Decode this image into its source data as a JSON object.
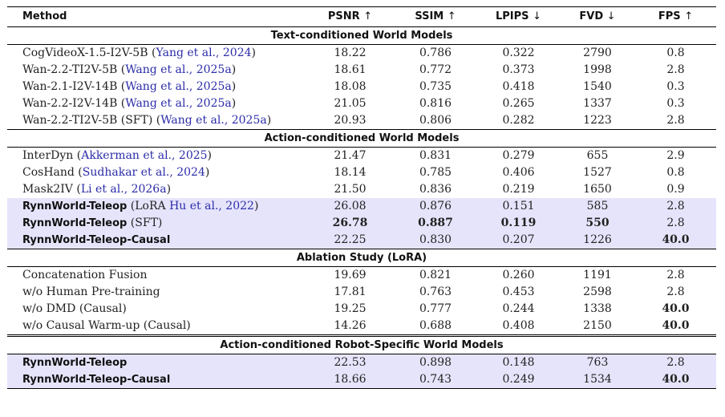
{
  "headers": {
    "method": "Method",
    "psnr": "PSNR",
    "ssim": "SSIM",
    "lpips": "LPIPS",
    "fvd": "FVD",
    "fps": "FPS",
    "up": "↑",
    "down": "↓"
  },
  "sections": [
    {
      "title": "Text-conditioned World Models",
      "rows": [
        {
          "name": "CogVideoX-1.5-I2V-5B",
          "cite": "Yang et al., 2024",
          "psnr": "18.22",
          "ssim": "0.786",
          "lpips": "0.322",
          "fvd": "2790",
          "fps": "0.8"
        },
        {
          "name": "Wan-2.2-TI2V-5B",
          "cite": "Wang et al., 2025a",
          "psnr": "18.61",
          "ssim": "0.772",
          "lpips": "0.373",
          "fvd": "1998",
          "fps": "2.8"
        },
        {
          "name": "Wan-2.1-I2V-14B",
          "cite": "Wang et al., 2025a",
          "psnr": "18.08",
          "ssim": "0.735",
          "lpips": "0.418",
          "fvd": "1540",
          "fps": "0.3"
        },
        {
          "name": "Wan-2.2-I2V-14B",
          "cite": "Wang et al., 2025a",
          "psnr": "21.05",
          "ssim": "0.816",
          "lpips": "0.265",
          "fvd": "1337",
          "fps": "0.3"
        },
        {
          "name": "Wan-2.2-TI2V-5B (SFT)",
          "cite": "Wang et al., 2025a",
          "psnr": "20.93",
          "ssim": "0.806",
          "lpips": "0.282",
          "fvd": "1223",
          "fps": "2.8"
        }
      ]
    },
    {
      "title": "Action-conditioned World Models",
      "rows": [
        {
          "name": "InterDyn",
          "cite": "Akkerman et al., 2025",
          "psnr": "21.47",
          "ssim": "0.831",
          "lpips": "0.279",
          "fvd": "655",
          "fps": "2.9"
        },
        {
          "name": "CosHand",
          "cite": "Sudhakar et al., 2024",
          "psnr": "18.14",
          "ssim": "0.785",
          "lpips": "0.406",
          "fvd": "1527",
          "fps": "0.8"
        },
        {
          "name": "Mask2IV",
          "cite": "Li et al., 2026a",
          "psnr": "21.50",
          "ssim": "0.836",
          "lpips": "0.219",
          "fvd": "1650",
          "fps": "0.9"
        },
        {
          "name": "RynnWorld-Teleop",
          "suffix_pre": "(LoRA ",
          "cite": "Hu et al., 2022",
          "suffix_post": ")",
          "psnr": "26.08",
          "ssim": "0.876",
          "lpips": "0.151",
          "fvd": "585",
          "fps": "2.8"
        },
        {
          "name": "RynnWorld-Teleop",
          "suffix_pre": "(SFT)",
          "psnr": "26.78",
          "ssim": "0.887",
          "lpips": "0.119",
          "fvd": "550",
          "fps": "2.8"
        },
        {
          "name": "RynnWorld-Teleop-Causal",
          "psnr": "22.25",
          "ssim": "0.830",
          "lpips": "0.207",
          "fvd": "1226",
          "fps": "40.0"
        }
      ]
    },
    {
      "title": "Ablation Study (LoRA)",
      "rows": [
        {
          "name": "Concatenation Fusion",
          "psnr": "19.69",
          "ssim": "0.821",
          "lpips": "0.260",
          "fvd": "1191",
          "fps": "2.8"
        },
        {
          "name": "w/o Human Pre-training",
          "psnr": "17.81",
          "ssim": "0.763",
          "lpips": "0.453",
          "fvd": "2598",
          "fps": "2.8"
        },
        {
          "name": "w/o DMD (Causal)",
          "psnr": "19.25",
          "ssim": "0.777",
          "lpips": "0.244",
          "fvd": "1338",
          "fps": "40.0"
        },
        {
          "name": "w/o Causal Warm-up (Causal)",
          "psnr": "14.26",
          "ssim": "0.688",
          "lpips": "0.408",
          "fvd": "2150",
          "fps": "40.0"
        }
      ]
    },
    {
      "title": "Action-conditioned Robot-Specific World Models",
      "rows": [
        {
          "name": "RynnWorld-Teleop",
          "psnr": "22.53",
          "ssim": "0.898",
          "lpips": "0.148",
          "fvd": "763",
          "fps": "2.8"
        },
        {
          "name": "RynnWorld-Teleop-Causal",
          "psnr": "18.66",
          "ssim": "0.743",
          "lpips": "0.249",
          "fvd": "1534",
          "fps": "40.0"
        }
      ]
    }
  ]
}
